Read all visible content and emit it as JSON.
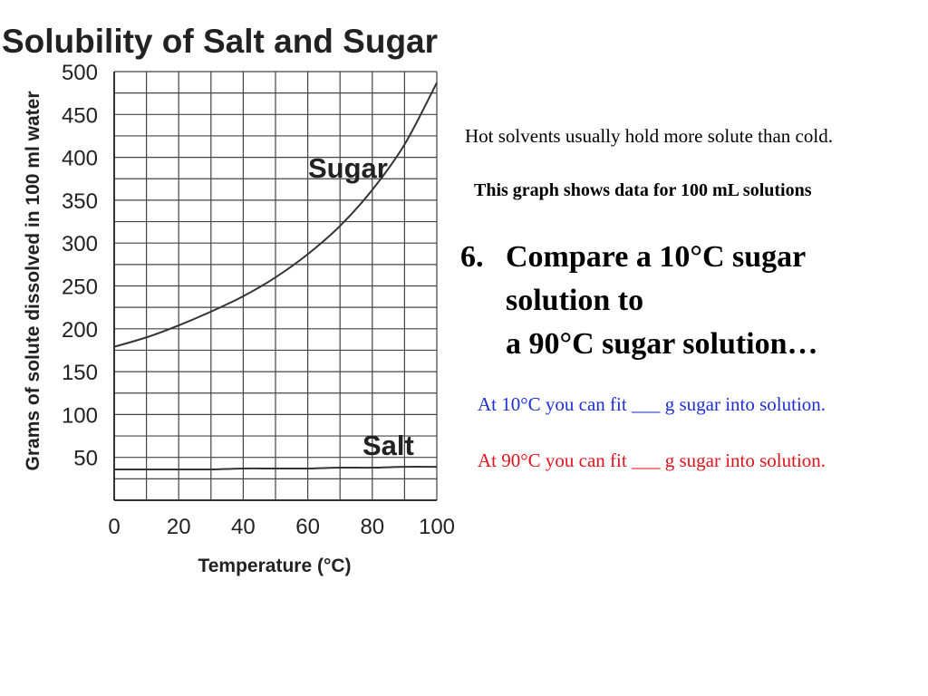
{
  "slide": {
    "note": "Hot solvents usually hold more solute than cold.",
    "subtitle": "This graph shows data for 100 mL solutions",
    "question_number": "6.",
    "question_lines": [
      "Compare a 10°C sugar",
      "solution to",
      "a 90°C sugar solution…"
    ],
    "answer_10": "At 10°C you can fit ___ g sugar into solution.",
    "answer_90": "At 90°C you can fit ___ g sugar into solution.",
    "answer_10_color": "#1d2fd6",
    "answer_90_color": "#e3121b"
  },
  "chart_data": {
    "type": "line",
    "title": "Solubility of Salt and Sugar",
    "xlabel": "Temperature (°C)",
    "ylabel": "Grams of solute dissolved in 100 ml water",
    "xlim": [
      0,
      100
    ],
    "ylim": [
      0,
      500
    ],
    "x_ticks": [
      0,
      20,
      40,
      60,
      80,
      100
    ],
    "y_ticks": [
      50,
      100,
      150,
      200,
      250,
      300,
      350,
      400,
      450,
      500
    ],
    "grid": true,
    "x": [
      0,
      10,
      20,
      30,
      40,
      50,
      60,
      70,
      80,
      90,
      100
    ],
    "series": [
      {
        "name": "Sugar",
        "values": [
          179,
          190,
          204,
          220,
          238,
          260,
          287,
          320,
          362,
          415,
          487
        ]
      },
      {
        "name": "Salt",
        "values": [
          36,
          36,
          36,
          36,
          37,
          37,
          37,
          38,
          38,
          39,
          39
        ]
      }
    ],
    "line_color": "#333333"
  }
}
